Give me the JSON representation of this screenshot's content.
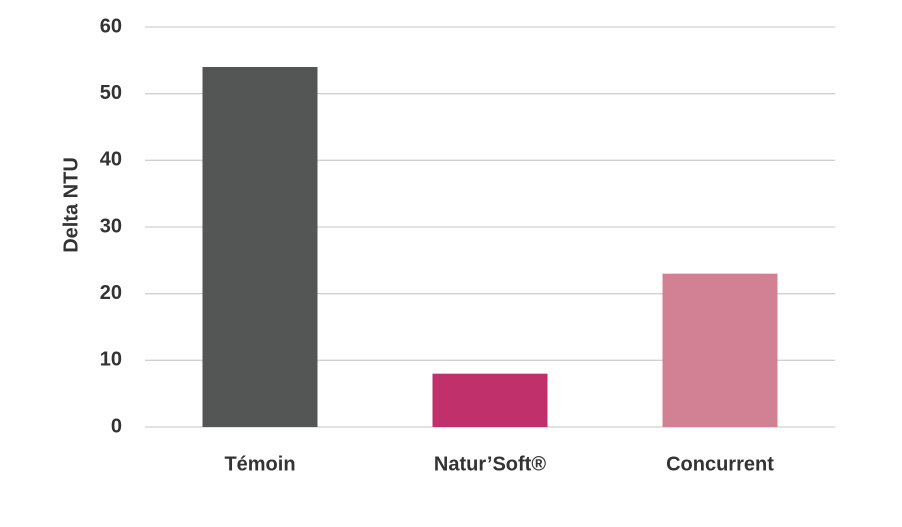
{
  "chart_data": {
    "type": "bar",
    "y_label": "Delta NTU",
    "categories": [
      "Témoin",
      "Natur’Soft®",
      "Concurrent"
    ],
    "values": [
      54,
      8,
      23
    ],
    "colors": [
      "#545655",
      "#c0306a",
      "#d28094"
    ],
    "ylim": [
      0,
      60
    ],
    "yticks": [
      0,
      10,
      20,
      30,
      40,
      50,
      60
    ],
    "grid": true
  }
}
